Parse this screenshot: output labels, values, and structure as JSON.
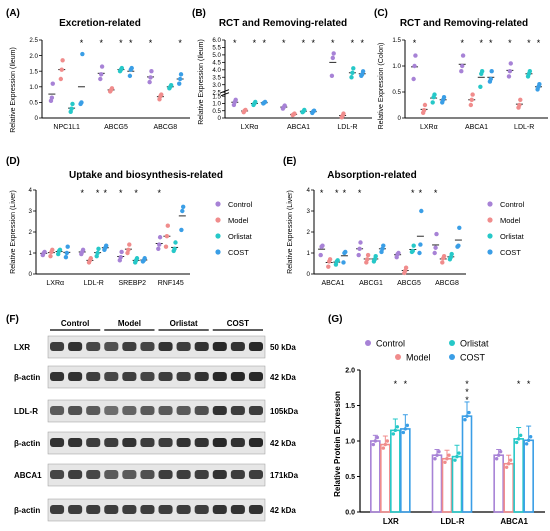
{
  "colors": {
    "control": "#a782d6",
    "model": "#f08c8c",
    "orlistat": "#26c8c8",
    "cost": "#3a9ee6",
    "axis": "#000000",
    "blot_band": "#1e1e1e",
    "blot_bg": "#e6e6e6"
  },
  "legend_labels": [
    "Control",
    "Model",
    "Orlistat",
    "COST"
  ],
  "chart_data": [
    {
      "panel": "(A)",
      "type": "scatter",
      "title": "Excretion-related",
      "ylabel": "Relative Expression (Ileum)",
      "ylim": [
        0,
        2.5
      ],
      "yticks": [
        "0",
        "0.5",
        "1.0",
        "1.5",
        "2.0",
        "2.5"
      ],
      "categories": [
        "NPC1L1",
        "ABCG5",
        "ABCG8"
      ],
      "series": [
        {
          "name": "Control",
          "values": [
            [
              0.55,
              0.65,
              1.1
            ],
            [
              1.25,
              1.4,
              1.65
            ],
            [
              1.15,
              1.3,
              1.5
            ]
          ]
        },
        {
          "name": "Model",
          "values": [
            [
              1.25,
              1.55,
              1.85
            ],
            [
              0.85,
              0.9,
              0.95
            ],
            [
              0.6,
              0.7,
              0.75
            ]
          ]
        },
        {
          "name": "Orlistat",
          "values": [
            [
              0.2,
              0.3,
              0.45
            ],
            [
              1.5,
              1.55,
              1.6
            ],
            [
              0.95,
              1.0,
              1.05
            ]
          ]
        },
        {
          "name": "COST",
          "values": [
            [
              0.45,
              0.5,
              2.05
            ],
            [
              1.35,
              1.55,
              1.6
            ],
            [
              1.1,
              1.25,
              1.4
            ]
          ]
        }
      ],
      "annotations": [
        "*",
        "*",
        "*",
        "*",
        "*",
        "*",
        "*"
      ]
    },
    {
      "panel": "(B)",
      "type": "scatter",
      "title": "RCT and Removing-related",
      "ylabel": "Relative Expression (Ileum)",
      "ylim": [
        0,
        6.0
      ],
      "axis_break": [
        1.5,
        2.5
      ],
      "yticks": [
        "0",
        "0.5",
        "1.0",
        "1.5",
        "2.5",
        "3.0",
        "3.5",
        "4.0",
        "4.5",
        "5.0",
        "5.5",
        "6.0"
      ],
      "categories": [
        "LXRα",
        "ABCA1",
        "LDL-R"
      ],
      "series": [
        {
          "name": "Control",
          "values": [
            [
              0.9,
              1.1,
              1.25
            ],
            [
              0.65,
              0.75,
              0.85
            ],
            [
              3.6,
              4.8,
              5.1
            ]
          ]
        },
        {
          "name": "Model",
          "values": [
            [
              0.4,
              0.5,
              0.55
            ],
            [
              0.2,
              0.25,
              0.3
            ],
            [
              0.05,
              0.15,
              0.3
            ]
          ]
        },
        {
          "name": "Orlistat",
          "values": [
            [
              0.9,
              1.0,
              1.1
            ],
            [
              0.4,
              0.45,
              0.55
            ],
            [
              3.5,
              3.8,
              4.1
            ]
          ]
        },
        {
          "name": "COST",
          "values": [
            [
              1.0,
              1.05,
              1.1
            ],
            [
              0.35,
              0.45,
              0.5
            ],
            [
              3.6,
              3.7,
              3.9
            ]
          ]
        }
      ],
      "annotations": [
        "*",
        "*",
        "*",
        "*",
        "*",
        "*",
        "*",
        "*",
        "*",
        "*",
        "*"
      ]
    },
    {
      "panel": "(C)",
      "type": "scatter",
      "title": "RCT and Removing-related",
      "ylabel": "Relative Expression (Colon)",
      "ylim": [
        0,
        1.5
      ],
      "yticks": [
        "0",
        "0.5",
        "1.0",
        "1.5"
      ],
      "categories": [
        "LXRα",
        "ABCA1",
        "LDL-R"
      ],
      "series": [
        {
          "name": "Control",
          "values": [
            [
              0.75,
              1.0,
              1.2
            ],
            [
              0.9,
              1.0,
              1.2
            ],
            [
              0.8,
              0.9,
              1.05
            ]
          ]
        },
        {
          "name": "Model",
          "values": [
            [
              0.1,
              0.15,
              0.25
            ],
            [
              0.25,
              0.35,
              0.45
            ],
            [
              0.2,
              0.25,
              0.35
            ]
          ]
        },
        {
          "name": "Orlistat",
          "values": [
            [
              0.3,
              0.4,
              0.45
            ],
            [
              0.6,
              0.85,
              0.9
            ],
            [
              0.8,
              0.85,
              0.9
            ]
          ]
        },
        {
          "name": "COST",
          "values": [
            [
              0.3,
              0.35,
              0.4
            ],
            [
              0.7,
              0.75,
              0.9
            ],
            [
              0.55,
              0.6,
              0.65
            ]
          ]
        }
      ],
      "annotations": [
        "*",
        "*",
        "*",
        "*",
        "*",
        "*",
        "*",
        "*",
        "*",
        "*",
        "*",
        "*"
      ]
    },
    {
      "panel": "(D)",
      "type": "scatter",
      "title": "Uptake and biosynthesis-related",
      "ylabel": "Relative Expression (Liver)",
      "ylim": [
        0,
        4
      ],
      "yticks": [
        "0",
        "1",
        "2",
        "3",
        "4"
      ],
      "categories": [
        "LXRα",
        "LDL-R",
        "SREBP2",
        "RNF145"
      ],
      "series": [
        {
          "name": "Control",
          "values": [
            [
              0.9,
              1.0,
              1.05
            ],
            [
              0.95,
              1.05,
              1.15
            ],
            [
              0.65,
              0.8,
              1.05
            ],
            [
              1.2,
              1.4,
              1.75
            ]
          ]
        },
        {
          "name": "Model",
          "values": [
            [
              0.85,
              1.05,
              1.15
            ],
            [
              0.55,
              0.65,
              0.75
            ],
            [
              1.0,
              1.15,
              1.4
            ],
            [
              1.3,
              1.8,
              2.3
            ]
          ]
        },
        {
          "name": "Orlistat",
          "values": [
            [
              0.95,
              1.1,
              1.15
            ],
            [
              0.85,
              1.0,
              1.2
            ],
            [
              0.55,
              0.65,
              0.75
            ],
            [
              1.1,
              1.2,
              1.5
            ]
          ]
        },
        {
          "name": "COST",
          "values": [
            [
              0.8,
              1.0,
              1.3
            ],
            [
              1.15,
              1.25,
              1.35
            ],
            [
              0.6,
              0.65,
              0.75
            ],
            [
              2.1,
              3.0,
              3.2
            ]
          ]
        }
      ],
      "legend_position": "right",
      "annotations": [
        "*",
        "*",
        "*",
        "*",
        "*",
        "*",
        "*"
      ]
    },
    {
      "panel": "(E)",
      "type": "scatter",
      "title": "Absorption-related",
      "ylabel": "Relative Expression (Liver)",
      "ylim": [
        0,
        4
      ],
      "yticks": [
        "0",
        "1",
        "2",
        "3",
        "4"
      ],
      "categories": [
        "ABCA1",
        "ABCG1",
        "ABCG5",
        "ABCG8"
      ],
      "series": [
        {
          "name": "Control",
          "values": [
            [
              0.9,
              1.3,
              1.35
            ],
            [
              0.9,
              1.2,
              1.5
            ],
            [
              0.8,
              0.95,
              1.0
            ],
            [
              1.0,
              1.25,
              1.9
            ]
          ]
        },
        {
          "name": "Model",
          "values": [
            [
              0.35,
              0.6,
              0.7
            ],
            [
              0.55,
              0.7,
              0.9
            ],
            [
              0.05,
              0.15,
              0.3
            ],
            [
              0.55,
              0.75,
              0.85
            ]
          ]
        },
        {
          "name": "Orlistat",
          "values": [
            [
              0.45,
              0.6,
              0.65
            ],
            [
              0.6,
              0.7,
              0.85
            ],
            [
              1.05,
              1.1,
              1.35
            ],
            [
              0.7,
              0.8,
              0.95
            ]
          ]
        },
        {
          "name": "COST",
          "values": [
            [
              0.55,
              1.0,
              1.05
            ],
            [
              1.05,
              1.2,
              1.35
            ],
            [
              1.0,
              1.4,
              3.0
            ],
            [
              1.3,
              1.35,
              2.2
            ]
          ]
        }
      ],
      "legend_position": "right",
      "annotations": [
        "*",
        "*",
        "*",
        "*",
        "*",
        "*",
        "*",
        "*",
        "*"
      ]
    },
    {
      "panel": "(G)",
      "type": "bar",
      "title": "",
      "ylabel": "Relative Protein Expression",
      "ylim": [
        0,
        2.0
      ],
      "yticks": [
        "0.0",
        "0.5",
        "1.0",
        "1.5",
        "2.0"
      ],
      "categories": [
        "LXR",
        "LDL-R",
        "ABCA1"
      ],
      "series": [
        {
          "name": "Control",
          "values": [
            1.0,
            0.8,
            0.8
          ]
        },
        {
          "name": "Model",
          "values": [
            0.95,
            0.75,
            0.68
          ]
        },
        {
          "name": "Orlistat",
          "values": [
            1.15,
            0.78,
            1.03
          ]
        },
        {
          "name": "COST",
          "values": [
            1.17,
            1.35,
            1.01
          ]
        }
      ],
      "legend_position": "top",
      "annotations": [
        "*",
        "*",
        "*",
        "*",
        "*",
        "*",
        "*"
      ]
    }
  ],
  "blot": {
    "panel": "(F)",
    "groups": [
      "Control",
      "Model",
      "Orlistat",
      "COST"
    ],
    "rows": [
      {
        "label": "LXR",
        "kda": "50 kDa"
      },
      {
        "label": "β-actin",
        "kda": "42 kDa"
      },
      {
        "label": "LDL-R",
        "kda": "105kDa"
      },
      {
        "label": "β-actin",
        "kda": "42 kDa"
      },
      {
        "label": "ABCA1",
        "kda": "171kDa"
      },
      {
        "label": "β-actin",
        "kda": "42 kDa"
      }
    ]
  }
}
